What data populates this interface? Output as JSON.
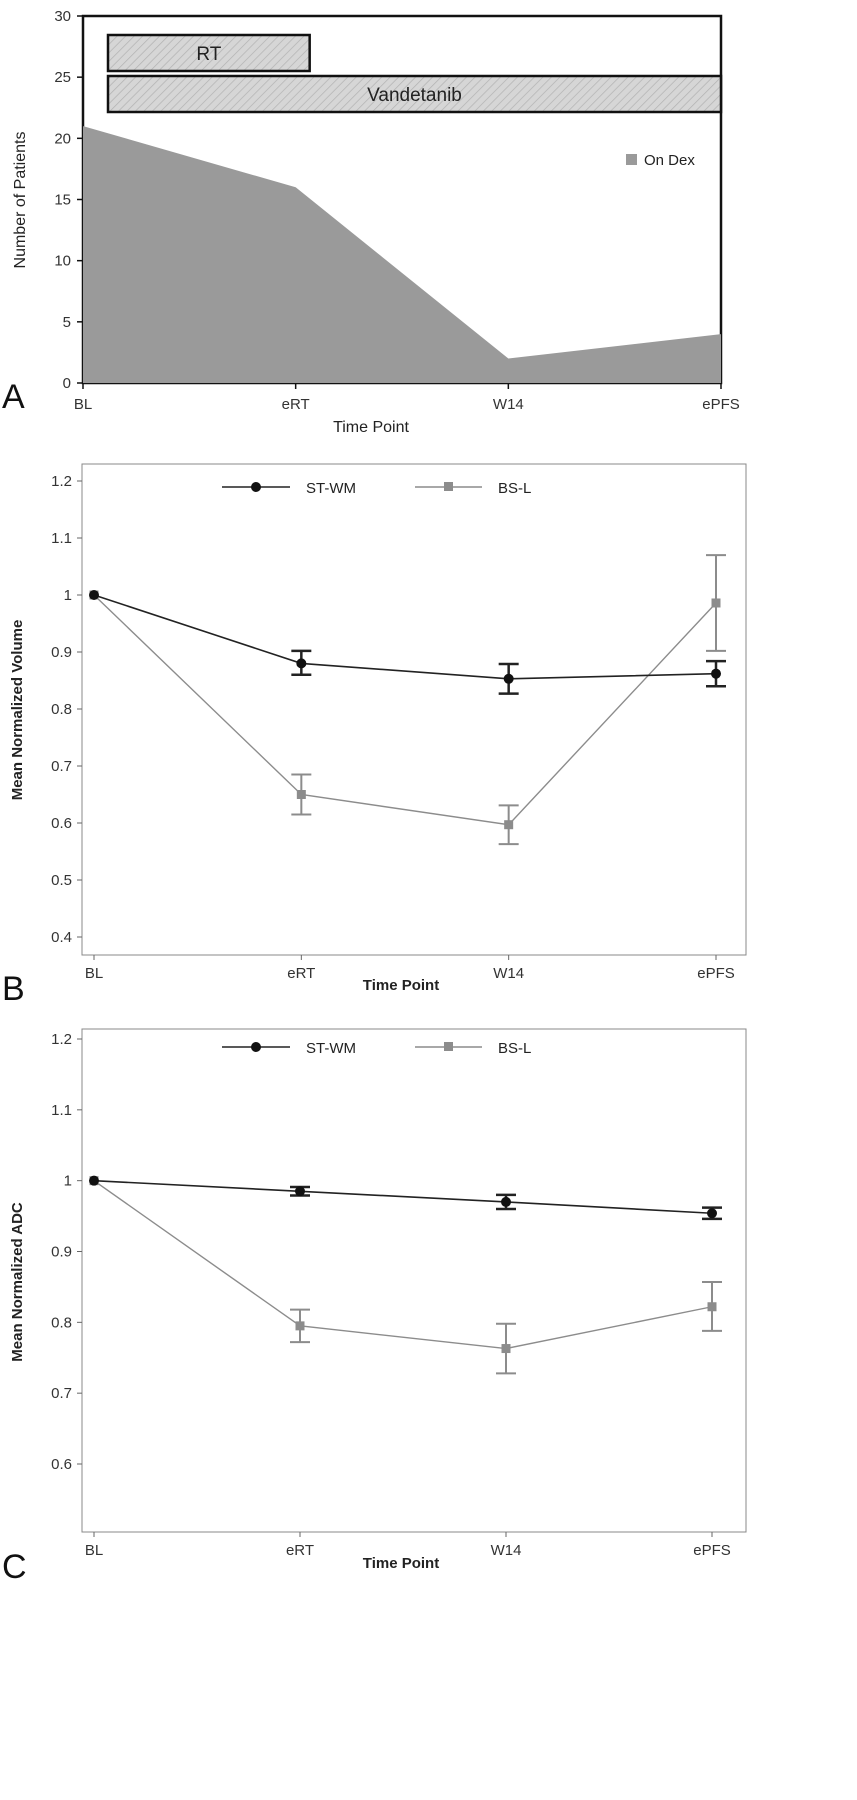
{
  "colors": {
    "area": "#9a9a9a",
    "series_dark": "#222222",
    "series_light": "#8c8c8c",
    "bar_fill": "#d6d6d6"
  },
  "chart_data": [
    {
      "panel": "A",
      "type": "area",
      "categories": [
        "BL",
        "eRT",
        "W14",
        "ePFS"
      ],
      "series": [
        {
          "name": "On Dex",
          "values": [
            21,
            16,
            2,
            4
          ]
        }
      ],
      "xlabel": "Time Point",
      "ylabel": "Number of Patients",
      "ylim": [
        0,
        30
      ],
      "yticks": [
        0,
        5,
        10,
        15,
        20,
        25,
        30
      ],
      "legend": "right",
      "treatment_bars": [
        {
          "label": "RT",
          "from": "BL",
          "to": "eRT"
        },
        {
          "label": "Vandetanib",
          "from": "BL",
          "to": "ePFS"
        }
      ]
    },
    {
      "panel": "B",
      "type": "line",
      "categories": [
        "BL",
        "eRT",
        "W14",
        "ePFS"
      ],
      "series": [
        {
          "name": "ST-WM",
          "marker": "circle",
          "values": [
            1.0,
            0.88,
            0.853,
            0.862
          ],
          "err_low": [
            1.0,
            0.86,
            0.827,
            0.84
          ],
          "err_high": [
            1.0,
            0.902,
            0.879,
            0.884
          ]
        },
        {
          "name": "BS-L",
          "marker": "square",
          "values": [
            1.0,
            0.65,
            0.597,
            0.986
          ],
          "err_low": [
            1.0,
            0.615,
            0.563,
            0.902
          ],
          "err_high": [
            1.0,
            0.685,
            0.631,
            1.07
          ]
        }
      ],
      "xlabel": "Time Point",
      "ylabel": "Mean Normalized Volume",
      "ylim": [
        0.4,
        1.2
      ],
      "yticks": [
        0.4,
        0.5,
        0.6,
        0.7,
        0.8,
        0.9,
        1.0,
        1.1,
        1.2
      ],
      "legend": "top"
    },
    {
      "panel": "C",
      "type": "line",
      "categories": [
        "BL",
        "eRT",
        "W14",
        "ePFS"
      ],
      "series": [
        {
          "name": "ST-WM",
          "marker": "circle",
          "values": [
            1.0,
            0.985,
            0.97,
            0.954
          ],
          "err_low": [
            1.0,
            0.979,
            0.96,
            0.946
          ],
          "err_high": [
            1.0,
            0.991,
            0.98,
            0.962
          ]
        },
        {
          "name": "BS-L",
          "marker": "square",
          "values": [
            1.0,
            0.795,
            0.763,
            0.822
          ],
          "err_low": [
            1.0,
            0.772,
            0.728,
            0.788
          ],
          "err_high": [
            1.0,
            0.818,
            0.798,
            0.857
          ]
        }
      ],
      "xlabel": "Time Point",
      "ylabel": "Mean Normalized ADC",
      "ylim": [
        0.6,
        1.2
      ],
      "yticks": [
        0.6,
        0.7,
        0.8,
        0.9,
        1.0,
        1.1,
        1.2
      ],
      "legend": "top"
    }
  ]
}
